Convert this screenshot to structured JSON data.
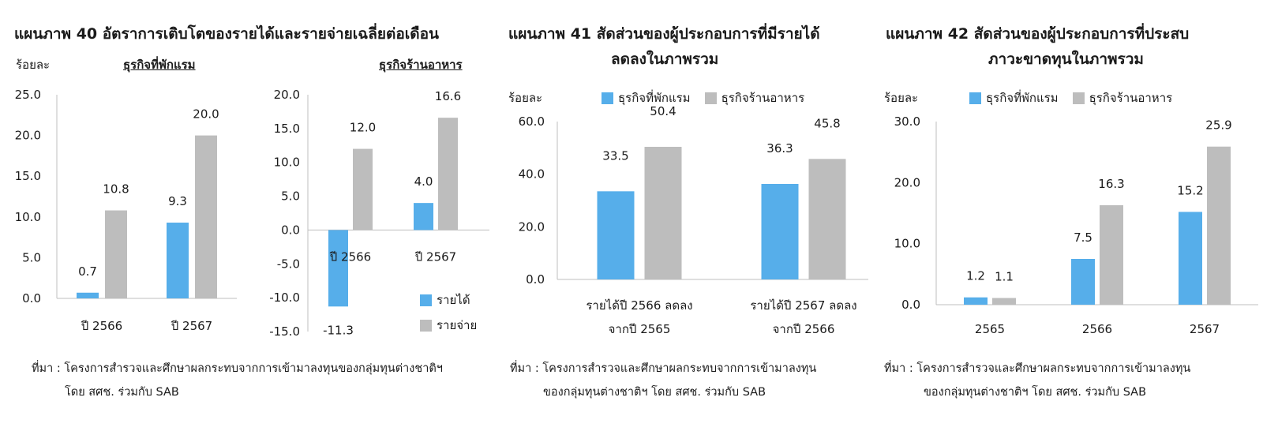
{
  "colors": {
    "blue": "#56AEEA",
    "gray": "#BDBDBD",
    "axis": "#BFBFBF"
  },
  "panel40": {
    "title": "แผนภาพ  40  อัตราการเติบโตของรายได้และรายจ่ายเฉลี่ยต่อเดือน",
    "unit": "ร้อยละ",
    "sub_left": "ธุรกิจที่พักแรม",
    "sub_right": "ธุรกิจร้านอาหาร",
    "source_line1": "ที่มา : โครงการสำรวจและศึกษาผลกระทบจากการเข้ามาลงทุนของกลุ่มทุนต่างชาติฯ",
    "source_line2": "โดย สศช. ร่วมกับ SAB",
    "legend": {
      "income": "รายได้",
      "expense": "รายจ่าย"
    }
  },
  "panel41": {
    "title_line1": "แผนภาพ  41  สัดส่วนของผู้ประกอบการที่มีรายได้",
    "title_line2": "ลดลงในภาพรวม",
    "unit": "ร้อยละ",
    "legend": {
      "hotel": "ธุรกิจที่พักแรม",
      "restaurant": "ธุรกิจร้านอาหาร"
    },
    "source_line1": "ที่มา : โครงการสำรวจและศึกษาผลกระทบจากการเข้ามาลงทุน",
    "source_line2": "ของกลุ่มทุนต่างชาติฯ โดย สศช. ร่วมกับ SAB"
  },
  "panel42": {
    "title_line1": "แผนภาพ  42  สัดส่วนของผู้ประกอบการที่ประสบ",
    "title_line2": "ภาวะขาดทุนในภาพรวม",
    "unit": "ร้อยละ",
    "legend": {
      "hotel": "ธุรกิจที่พักแรม",
      "restaurant": "ธุรกิจร้านอาหาร"
    },
    "source_line1": "ที่มา : โครงการสำรวจและศึกษาผลกระทบจากการเข้ามาลงทุน",
    "source_line2": "ของกลุ่มทุนต่างชาติฯ โดย สศช. ร่วมกับ SAB"
  },
  "chart_data": [
    {
      "id": "c40a",
      "type": "bar",
      "title": "ธุรกิจที่พักแรม",
      "ylabel": "ร้อยละ",
      "ylim": [
        0,
        25
      ],
      "yticks": [
        "0.0",
        "5.0",
        "10.0",
        "15.0",
        "20.0",
        "25.0"
      ],
      "categories": [
        "ปี 2566",
        "ปี 2567"
      ],
      "series": [
        {
          "name": "รายได้",
          "color": "#56AEEA",
          "values": [
            0.7,
            9.3
          ]
        },
        {
          "name": "รายจ่าย",
          "color": "#BDBDBD",
          "values": [
            10.8,
            20.0
          ]
        }
      ]
    },
    {
      "id": "c40b",
      "type": "bar",
      "title": "ธุรกิจร้านอาหาร",
      "ylim": [
        -15,
        20
      ],
      "yticks": [
        "-15.0",
        "-10.0",
        "-5.0",
        "0.0",
        "5.0",
        "10.0",
        "15.0",
        "20.0"
      ],
      "categories": [
        "ปี 2566",
        "ปี 2567"
      ],
      "series": [
        {
          "name": "รายได้",
          "color": "#56AEEA",
          "values": [
            -11.3,
            4.0
          ]
        },
        {
          "name": "รายจ่าย",
          "color": "#BDBDBD",
          "values": [
            12.0,
            16.6
          ]
        }
      ]
    },
    {
      "id": "c41",
      "type": "bar",
      "ylabel": "ร้อยละ",
      "ylim": [
        0,
        60
      ],
      "yticks": [
        "0.0",
        "20.0",
        "40.0",
        "60.0"
      ],
      "categories": [
        [
          "รายได้ปี 2566 ลดลง",
          "จากปี 2565"
        ],
        [
          "รายได้ปี 2567 ลดลง",
          "จากปี 2566"
        ]
      ],
      "series": [
        {
          "name": "ธุรกิจที่พักแรม",
          "color": "#56AEEA",
          "values": [
            33.5,
            36.3
          ]
        },
        {
          "name": "ธุรกิจร้านอาหาร",
          "color": "#BDBDBD",
          "values": [
            50.4,
            45.8
          ]
        }
      ]
    },
    {
      "id": "c42",
      "type": "bar",
      "ylabel": "ร้อยละ",
      "ylim": [
        0,
        30
      ],
      "yticks": [
        "0.0",
        "10.0",
        "20.0",
        "30.0"
      ],
      "categories": [
        "2565",
        "2566",
        "2567"
      ],
      "series": [
        {
          "name": "ธุรกิจที่พักแรม",
          "color": "#56AEEA",
          "values": [
            1.2,
            7.5,
            15.2
          ]
        },
        {
          "name": "ธุรกิจร้านอาหาร",
          "color": "#BDBDBD",
          "values": [
            1.1,
            16.3,
            25.9
          ]
        }
      ]
    }
  ]
}
